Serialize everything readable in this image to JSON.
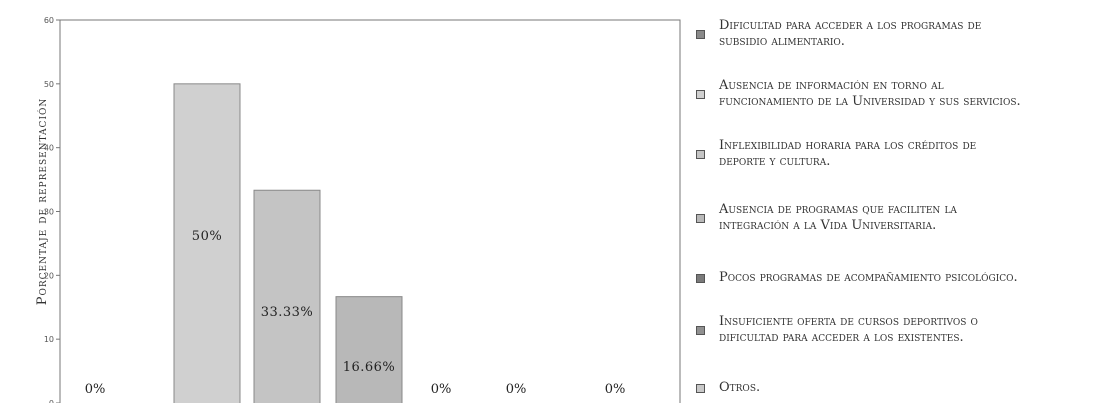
{
  "chart_data": {
    "type": "bar",
    "title": "",
    "xlabel": "",
    "ylabel": "Porcentaje de representación",
    "ylim": [
      0,
      60
    ],
    "yticks": [
      "0",
      "10",
      "20",
      "30",
      "40",
      "50",
      "60"
    ],
    "grid": false,
    "legend_position": "right",
    "categories": [
      "Dificultad para acceder a los programas de subsidio alimentario.",
      "Ausencia de información en torno al funcionamiento de la Universidad y sus servicios.",
      "Inflexibilidad horaria para los créditos de deporte y cultura.",
      "Ausencia de programas que faciliten la integración a la Vida Universitaria.",
      "Pocos programas de acompañamiento psicológico.",
      "Insuficiente oferta de cursos deportivos o dificultad para acceder a los existentes.",
      "Otros."
    ],
    "values": [
      0,
      50,
      33.33,
      16.66,
      0,
      0,
      0
    ],
    "data_labels": [
      "0%",
      "50%",
      "33.33%",
      "16.66%",
      "0%",
      "0%",
      "0%"
    ],
    "colors": [
      "#8a8a8a",
      "#d0d0d0",
      "#c4c4c4",
      "#b8b8b8",
      "#7a7a7a",
      "#909090",
      "#c8c8c8"
    ]
  },
  "legend": {
    "items": [
      {
        "line1": "Dificultad para acceder a los programas de",
        "line2": "subsidio alimentario."
      },
      {
        "line1": "Ausencia de información en torno al",
        "line2": "funcionamiento de la Universidad y sus servicios."
      },
      {
        "line1": "Inflexibilidad horaria para los créditos de",
        "line2": "deporte y cultura."
      },
      {
        "line1": "Ausencia de programas que faciliten la",
        "line2": "integración a la Vida Universitaria."
      },
      {
        "line1": "Pocos programas de acompañamiento psicológico.",
        "line2": ""
      },
      {
        "line1": "Insuficiente oferta de cursos deportivos o",
        "line2": "dificultad para acceder a los existentes."
      },
      {
        "line1": "Otros.",
        "line2": ""
      }
    ]
  }
}
